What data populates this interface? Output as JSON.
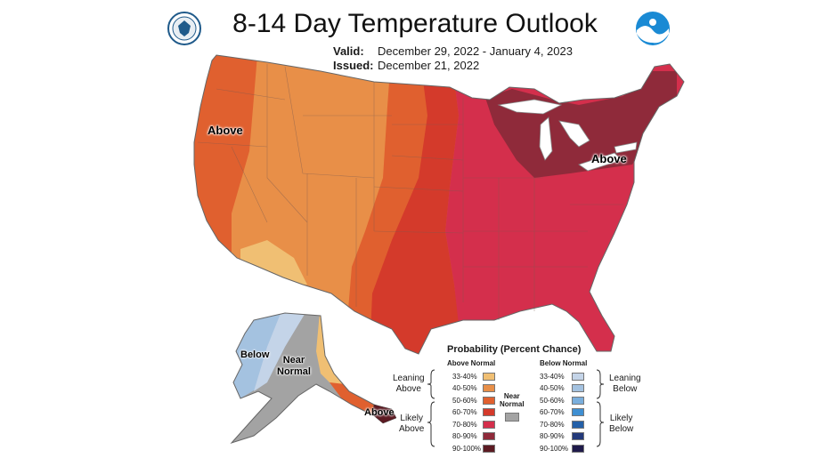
{
  "header": {
    "title": "8-14 Day Temperature Outlook",
    "valid_label": "Valid:",
    "valid_value": "December 29, 2022 - January 4, 2023",
    "issued_label": "Issued:",
    "issued_value": "December 21, 2022"
  },
  "logos": {
    "left": "doc-seal-icon",
    "right": "noaa-logo-icon"
  },
  "map_labels": {
    "above_west": "Above",
    "above_northeast": "Above",
    "alaska_below": "Below",
    "alaska_near_normal_1": "Near",
    "alaska_near_normal_2": "Normal",
    "alaska_above": "Above"
  },
  "legend": {
    "title": "Probability (Percent Chance)",
    "above_header": "Above Normal",
    "below_header": "Below Normal",
    "leaning_above_1": "Leaning",
    "leaning_above_2": "Above",
    "likely_above_1": "Likely",
    "likely_above_2": "Above",
    "leaning_below_1": "Leaning",
    "leaning_below_2": "Below",
    "likely_below_1": "Likely",
    "likely_below_2": "Below",
    "near_normal_1": "Near",
    "near_normal_2": "Normal",
    "above": [
      {
        "range": "33-40%",
        "color": "#f0bf73"
      },
      {
        "range": "40-50%",
        "color": "#e88f48"
      },
      {
        "range": "50-60%",
        "color": "#e0602f"
      },
      {
        "range": "60-70%",
        "color": "#d43a2b"
      },
      {
        "range": "70-80%",
        "color": "#d42f4c"
      },
      {
        "range": "80-90%",
        "color": "#8f2a3a"
      },
      {
        "range": "90-100%",
        "color": "#5c1a22"
      }
    ],
    "below": [
      {
        "range": "33-40%",
        "color": "#c4d4e8"
      },
      {
        "range": "40-50%",
        "color": "#a4c2e0"
      },
      {
        "range": "50-60%",
        "color": "#7aaedc"
      },
      {
        "range": "60-70%",
        "color": "#3f8fd2"
      },
      {
        "range": "70-80%",
        "color": "#2460a8"
      },
      {
        "range": "80-90%",
        "color": "#233a7a"
      },
      {
        "range": "90-100%",
        "color": "#1f1a4a"
      }
    ],
    "near_normal_color": "#a3a3a3"
  }
}
